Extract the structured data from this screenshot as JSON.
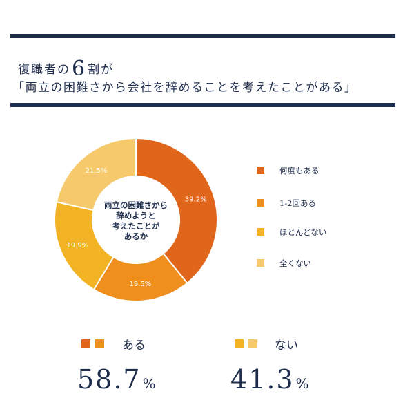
{
  "header": {
    "title_prefix": "復職者の",
    "title_number": "6",
    "title_suffix": "割が",
    "subtitle": "「両立の困難さから会社を辞めることを考えたことがある」"
  },
  "chart_data": {
    "type": "pie",
    "donut": true,
    "center_label": [
      "両立の困難さから",
      "辞めようと",
      "考えたことが",
      "あるか"
    ],
    "categories": [
      "何度もある",
      "1-2回ある",
      "ほとんどない",
      "全くない"
    ],
    "values": [
      39.2,
      19.5,
      19.9,
      21.5
    ],
    "data_labels": [
      "39.2%",
      "19.5%",
      "19.9%",
      "21.5%"
    ],
    "colors": [
      "#e0661c",
      "#ee8f1e",
      "#f2b425",
      "#f5c96c"
    ],
    "legend_position": "right"
  },
  "summary": [
    {
      "label": "ある",
      "value": "58.7",
      "unit": "%",
      "colors": [
        "#e0661c",
        "#ee8f1e"
      ]
    },
    {
      "label": "ない",
      "value": "41.3",
      "unit": "%",
      "colors": [
        "#f2b425",
        "#f5c96c"
      ]
    }
  ]
}
